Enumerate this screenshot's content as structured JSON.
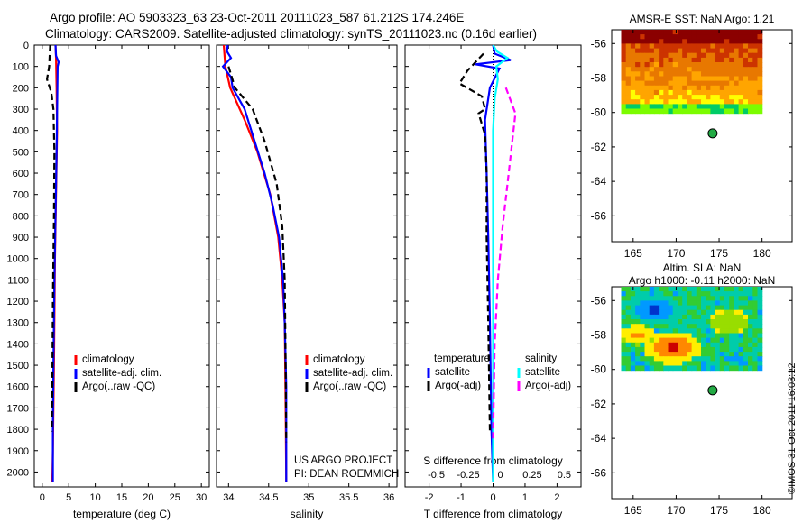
{
  "header": {
    "line1": "Argo profile: AO 5903323_63 23-Oct-2011 20111023_587 61.212S 174.246E",
    "line2": "Climatology: CARS2009. Satellite-adjusted climatology: synTS_20111023.nc (0.16d earlier)"
  },
  "stamp": "©IMOS 31-Oct-2011 16:03:12",
  "chart_data": [
    {
      "type": "line",
      "id": "temperature",
      "xlabel": "temperature (deg C)",
      "xticks": [
        0,
        5,
        10,
        15,
        20,
        25,
        30
      ],
      "xlim": [
        -1.5,
        31.5
      ],
      "ylim": [
        0,
        2070
      ],
      "yticks": [
        0,
        100,
        200,
        300,
        400,
        500,
        600,
        700,
        800,
        900,
        1000,
        1100,
        1200,
        1300,
        1400,
        1500,
        1600,
        1700,
        1800,
        1900,
        2000
      ],
      "legend": [
        "climatology",
        "satellite-adj. clim.",
        "Argo(..raw -QC)"
      ],
      "series": [
        {
          "name": "climatology",
          "color": "#ff0000",
          "style": "solid",
          "points": [
            [
              2.5,
              0
            ],
            [
              2.6,
              60
            ],
            [
              2.7,
              200
            ],
            [
              2.8,
              400
            ],
            [
              2.6,
              700
            ],
            [
              2.4,
              1000
            ],
            [
              2.2,
              1500
            ],
            [
              2.0,
              1900
            ],
            [
              1.9,
              2045
            ]
          ]
        },
        {
          "name": "satellite-adj. clim.",
          "color": "#0000ff",
          "style": "solid",
          "points": [
            [
              2.5,
              0
            ],
            [
              2.6,
              50
            ],
            [
              3.1,
              80
            ],
            [
              2.9,
              100
            ],
            [
              2.8,
              300
            ],
            [
              2.7,
              500
            ],
            [
              2.5,
              800
            ],
            [
              2.3,
              1100
            ],
            [
              2.1,
              1500
            ],
            [
              2.0,
              1800
            ],
            [
              2.0,
              2045
            ]
          ]
        },
        {
          "name": "Argo(..raw -QC)",
          "color": "#000000",
          "style": "dashed",
          "points": [
            [
              1.5,
              0
            ],
            [
              1.3,
              100
            ],
            [
              0.9,
              160
            ],
            [
              1.7,
              220
            ],
            [
              2.1,
              300
            ],
            [
              2.3,
              500
            ],
            [
              2.2,
              800
            ],
            [
              2.0,
              1200
            ],
            [
              1.9,
              1600
            ],
            [
              1.8,
              1810
            ]
          ]
        }
      ]
    },
    {
      "type": "line",
      "id": "salinity",
      "xlabel": "salinity",
      "xticks": [
        34,
        34.5,
        35,
        35.5,
        36
      ],
      "xlim": [
        33.85,
        36.1
      ],
      "ylim": [
        0,
        2070
      ],
      "legend": [
        "climatology",
        "satellite-adj. clim.",
        "Argo(..raw -QC)"
      ],
      "annotation": [
        "US ARGO PROJECT",
        "PI: DEAN ROEMMICH"
      ],
      "series": [
        {
          "name": "climatology",
          "color": "#ff0000",
          "style": "solid",
          "points": [
            [
              33.94,
              0
            ],
            [
              33.96,
              100
            ],
            [
              34.02,
              200
            ],
            [
              34.2,
              350
            ],
            [
              34.36,
              500
            ],
            [
              34.52,
              700
            ],
            [
              34.62,
              900
            ],
            [
              34.67,
              1100
            ],
            [
              34.7,
              1300
            ],
            [
              34.71,
              1600
            ],
            [
              34.72,
              2045
            ]
          ]
        },
        {
          "name": "satellite-adj. clim.",
          "color": "#0000ff",
          "style": "solid",
          "points": [
            [
              33.99,
              0
            ],
            [
              33.98,
              30
            ],
            [
              34.03,
              60
            ],
            [
              33.93,
              100
            ],
            [
              34.03,
              150
            ],
            [
              34.05,
              200
            ],
            [
              34.2,
              300
            ],
            [
              34.3,
              420
            ],
            [
              34.45,
              600
            ],
            [
              34.55,
              750
            ],
            [
              34.63,
              900
            ],
            [
              34.68,
              1100
            ],
            [
              34.7,
              1300
            ],
            [
              34.72,
              1600
            ],
            [
              34.72,
              2045
            ]
          ]
        },
        {
          "name": "Argo(..raw -QC)",
          "color": "#000000",
          "style": "dashed",
          "points": [
            [
              34.0,
              100
            ],
            [
              34.08,
              200
            ],
            [
              34.3,
              300
            ],
            [
              34.45,
              450
            ],
            [
              34.6,
              650
            ],
            [
              34.67,
              850
            ],
            [
              34.7,
              1100
            ],
            [
              34.71,
              1400
            ],
            [
              34.72,
              1860
            ]
          ]
        }
      ]
    },
    {
      "type": "line",
      "id": "difference",
      "xlabel": "T difference from climatology",
      "xlabel_top": "S difference from climatology",
      "xticks": [
        -2,
        -1,
        0,
        1,
        2
      ],
      "xticks_top": [
        "-0.5",
        "-0.25",
        "0",
        "0.25",
        "0.5"
      ],
      "xlim": [
        -2.75,
        2.75
      ],
      "ylim": [
        0,
        2070
      ],
      "legend_left_title": "temperature",
      "legend_right_title": "salinity",
      "legend": [
        "satellite",
        "Argo(-adj)",
        "satellite",
        "Argo(-adj)"
      ],
      "series": [
        {
          "name": "T satellite",
          "color": "#0000ff",
          "style": "solid",
          "points": [
            [
              0,
              0
            ],
            [
              0.05,
              40
            ],
            [
              0.55,
              70
            ],
            [
              -0.55,
              90
            ],
            [
              0.2,
              110
            ],
            [
              -0.1,
              200
            ],
            [
              -0.25,
              350
            ],
            [
              -0.2,
              600
            ],
            [
              -0.15,
              900
            ],
            [
              -0.1,
              1300
            ],
            [
              -0.05,
              1800
            ],
            [
              0,
              2045
            ]
          ]
        },
        {
          "name": "T Argo(-adj)",
          "color": "#000000",
          "style": "dashed",
          "points": [
            [
              -0.3,
              40
            ],
            [
              -0.8,
              120
            ],
            [
              -1.05,
              180
            ],
            [
              -0.35,
              240
            ],
            [
              -0.25,
              300
            ],
            [
              -0.45,
              320
            ],
            [
              -0.25,
              420
            ],
            [
              -0.2,
              600
            ],
            [
              -0.2,
              900
            ],
            [
              -0.15,
              1300
            ],
            [
              -0.1,
              1810
            ]
          ]
        },
        {
          "name": "S satellite",
          "color": "#00ffff",
          "style": "solid",
          "points": [
            [
              0,
              0
            ],
            [
              0.12,
              30
            ],
            [
              0.45,
              60
            ],
            [
              0.1,
              100
            ],
            [
              0.15,
              160
            ],
            [
              0.05,
              250
            ],
            [
              0,
              400
            ],
            [
              0,
              700
            ],
            [
              0,
              1000
            ],
            [
              0,
              1500
            ],
            [
              0,
              2045
            ]
          ]
        },
        {
          "name": "S Argo(-adj)",
          "color": "#ff00ff",
          "style": "dashed",
          "points": [
            [
              0.4,
              200
            ],
            [
              0.7,
              320
            ],
            [
              0.6,
              450
            ],
            [
              0.45,
              650
            ],
            [
              0.3,
              850
            ],
            [
              0.15,
              1100
            ],
            [
              0.05,
              1400
            ],
            [
              0,
              1860
            ]
          ]
        }
      ]
    },
    {
      "type": "heatmap",
      "id": "sst-map",
      "title": "AMSR-E SST: NaN Argo: 1.21",
      "xticks": [
        165,
        170,
        175,
        180
      ],
      "yticks": [
        -56,
        -58,
        -60,
        -62,
        -64,
        -66
      ],
      "xlim": [
        162.5,
        183.5
      ],
      "ylim": [
        -67.5,
        -55.2
      ],
      "argo_position": [
        174.246,
        -61.212
      ],
      "colors": [
        "#8b0000",
        "#cc3300",
        "#e87800",
        "#ffa500",
        "#ffff00",
        "#7cfc00",
        "#00cc66"
      ]
    },
    {
      "type": "heatmap",
      "id": "sla-map",
      "title": [
        "Altim. SLA: NaN",
        "Argo h1000: -0.11 h2000: NaN"
      ],
      "xticks": [
        165,
        170,
        175,
        180
      ],
      "yticks": [
        -56,
        -58,
        -60,
        -62,
        -64,
        -66
      ],
      "xlim": [
        162.5,
        183.5
      ],
      "ylim": [
        -67.5,
        -55.2
      ],
      "argo_position": [
        174.246,
        -61.212
      ],
      "colors": [
        "#0033cc",
        "#0099ff",
        "#00ccaa",
        "#33cc33",
        "#99dd00",
        "#ffee00",
        "#ff8800",
        "#cc0000"
      ]
    }
  ]
}
